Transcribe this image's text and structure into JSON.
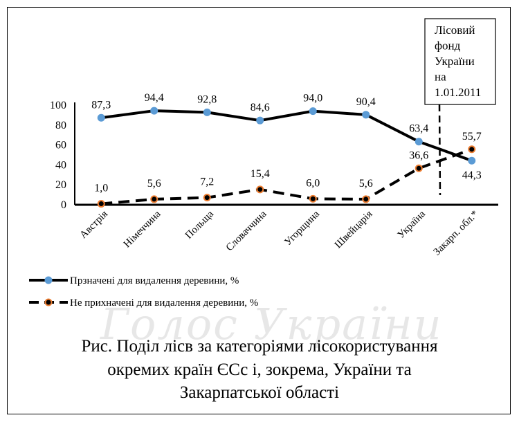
{
  "chart_data": {
    "type": "line",
    "categories": [
      "Австрія",
      "Німеччина",
      "Польща",
      "Словаччина",
      "Угорщина",
      "Швейцарія",
      "Україна",
      "Закарп. обл.*"
    ],
    "series": [
      {
        "name": "Прзначені для видалення деревини, %",
        "values": [
          87.3,
          94.4,
          92.8,
          84.6,
          94.0,
          90.4,
          63.4,
          44.3
        ],
        "labels": [
          "87,3",
          "94,4",
          "92,8",
          "84,6",
          "94,0",
          "90,4",
          "63,4",
          "44,3"
        ],
        "line_color": "#000000",
        "marker_color": "#5b9bd5",
        "dashed": false
      },
      {
        "name": "Не прихначені  для видалення деревини, %",
        "values": [
          1.0,
          5.6,
          7.2,
          15.4,
          6.0,
          5.6,
          36.6,
          55.7
        ],
        "labels": [
          "1,0",
          "5,6",
          "7,2",
          "15,4",
          "6,0",
          "5,6",
          "36,6",
          "55,7"
        ],
        "line_color": "#000000",
        "marker_color": "#000000",
        "marker_edge": "#ed7d31",
        "dashed": true
      }
    ],
    "yticks": [
      "0",
      "20",
      "40",
      "60",
      "80",
      "100"
    ],
    "ylim": [
      0,
      100
    ],
    "grid": false,
    "legend_position": "bottom-left",
    "annotation": "Лісовий фонд України на 1.01.2011",
    "annotation_lines": [
      "Лісовий",
      "фонд",
      "України",
      "на",
      "1.01.2011"
    ]
  },
  "caption": {
    "line1": "Рис. Поділ лісв за категоріями лісокористування",
    "line2": "окремих країн ЄСс і, зокрема, України та",
    "line3": "Закарпатської області"
  },
  "watermark": "Голос України"
}
